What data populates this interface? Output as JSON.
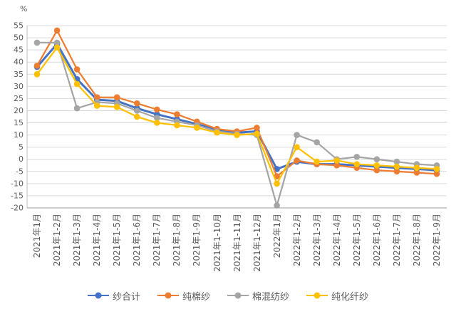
{
  "chart": {
    "unit": "%",
    "y_axis": {
      "min": -20,
      "max": 55,
      "step": 5,
      "ticks": [
        55,
        50,
        45,
        40,
        35,
        30,
        25,
        20,
        15,
        10,
        5,
        0,
        -5,
        -10,
        -15,
        -20
      ]
    }
  },
  "chart_data": {
    "type": "line",
    "title": "",
    "xlabel": "",
    "ylabel": "%",
    "ylim": [
      -20,
      55
    ],
    "ystep": 5,
    "grid": true,
    "legend_position": "bottom",
    "categories": [
      "2021年1月",
      "2021年1-2月",
      "2021年1-3月",
      "2021年1-4月",
      "2021年1-5月",
      "2021年1-6月",
      "2021年1-7月",
      "2021年1-8月",
      "2021年1-9月",
      "2021年1-10月",
      "2021年1-11月",
      "2021年1-12月",
      "2022年1月",
      "2022年1-2月",
      "2022年1-3月",
      "2022年1-4月",
      "2022年1-5月",
      "2022年1-6月",
      "2022年1-7月",
      "2022年1-8月",
      "2022年1-9月"
    ],
    "series": [
      {
        "name": "纱合计",
        "color": "#4472C4",
        "values": [
          38,
          47.5,
          33,
          24.5,
          24,
          21,
          18.5,
          16.5,
          14.5,
          12,
          11,
          11.5,
          -4,
          -1,
          -2,
          -2,
          -2.5,
          -3,
          -3.5,
          -4,
          -4.5
        ]
      },
      {
        "name": "纯棉纱",
        "color": "#ED7D31",
        "values": [
          38.5,
          53,
          37,
          25.5,
          25.5,
          23,
          20.5,
          18.5,
          15.5,
          12.5,
          11.5,
          13,
          -7,
          -0.5,
          -2,
          -2.5,
          -3.5,
          -4.5,
          -5,
          -5.5,
          -6
        ]
      },
      {
        "name": "棉混纺纱",
        "color": "#A5A5A5",
        "values": [
          48,
          48,
          21,
          23.5,
          23,
          20,
          17,
          15.5,
          14,
          11.5,
          10.5,
          10,
          -19,
          10,
          7,
          0,
          1,
          0,
          -1,
          -2,
          -2.5
        ]
      },
      {
        "name": "纯化纤纱",
        "color": "#FFC000",
        "values": [
          35,
          46,
          31,
          22,
          21.5,
          17.5,
          15,
          14,
          13,
          11,
          10,
          10.5,
          -10,
          5,
          -1,
          -0.5,
          -2,
          -2.5,
          -3,
          -3.5,
          -4
        ]
      }
    ]
  }
}
